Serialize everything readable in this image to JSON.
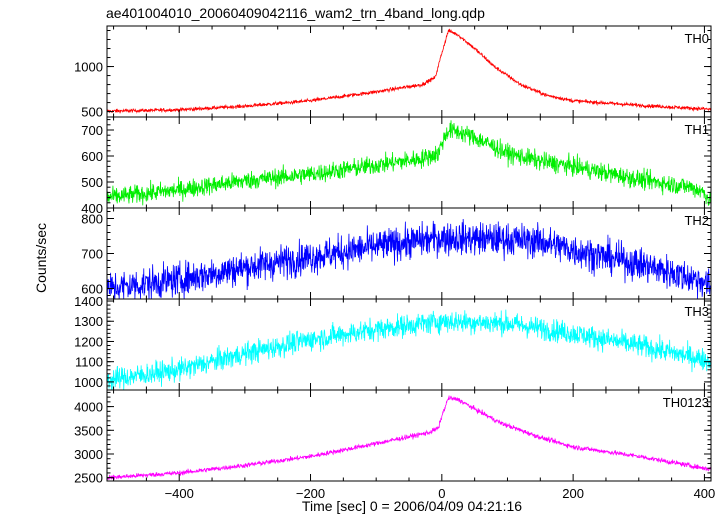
{
  "chart_data": {
    "type": "line",
    "title": "ae401004010_20060409042116_wam2_trn_4band_long.qdp",
    "xlabel": "Time [sec] 0 = 2006/04/09 04:21:16",
    "ylabel": "Counts/sec",
    "xlim": [
      -510,
      410
    ],
    "xticks": [
      -400,
      -200,
      0,
      200,
      400
    ],
    "xtick_labels": [
      "−400",
      "−200",
      "0",
      "200",
      "400"
    ],
    "grid": false,
    "panels": [
      {
        "name": "TH0",
        "color": "#ff0000",
        "ylim": [
          440,
          1450
        ],
        "yticks": [
          500,
          1000
        ],
        "noise": 10,
        "keypoints": [
          [
            -510,
            505
          ],
          [
            -400,
            520
          ],
          [
            -300,
            560
          ],
          [
            -200,
            620
          ],
          [
            -100,
            720
          ],
          [
            -30,
            800
          ],
          [
            -10,
            880
          ],
          [
            0,
            1150
          ],
          [
            10,
            1400
          ],
          [
            25,
            1350
          ],
          [
            50,
            1200
          ],
          [
            80,
            1000
          ],
          [
            120,
            800
          ],
          [
            160,
            680
          ],
          [
            200,
            620
          ],
          [
            300,
            570
          ],
          [
            400,
            530
          ],
          [
            410,
            525
          ]
        ]
      },
      {
        "name": "TH1",
        "color": "#00ee00",
        "ylim": [
          400,
          750
        ],
        "yticks": [
          400,
          500,
          600,
          700
        ],
        "noise": 18,
        "keypoints": [
          [
            -510,
            440
          ],
          [
            -400,
            470
          ],
          [
            -300,
            505
          ],
          [
            -200,
            530
          ],
          [
            -100,
            565
          ],
          [
            -30,
            590
          ],
          [
            -5,
            610
          ],
          [
            0,
            650
          ],
          [
            10,
            700
          ],
          [
            30,
            690
          ],
          [
            60,
            660
          ],
          [
            100,
            610
          ],
          [
            150,
            580
          ],
          [
            200,
            560
          ],
          [
            300,
            510
          ],
          [
            380,
            480
          ],
          [
            400,
            460
          ],
          [
            410,
            420
          ]
        ]
      },
      {
        "name": "TH2",
        "color": "#0000ff",
        "ylim": [
          570,
          830
        ],
        "yticks": [
          600,
          700,
          800
        ],
        "noise": 24,
        "keypoints": [
          [
            -510,
            600
          ],
          [
            -400,
            625
          ],
          [
            -300,
            660
          ],
          [
            -200,
            690
          ],
          [
            -100,
            720
          ],
          [
            0,
            745
          ],
          [
            100,
            740
          ],
          [
            150,
            735
          ],
          [
            200,
            710
          ],
          [
            300,
            670
          ],
          [
            400,
            620
          ],
          [
            410,
            600
          ]
        ]
      },
      {
        "name": "TH3",
        "color": "#00ffff",
        "ylim": [
          960,
          1410
        ],
        "yticks": [
          1000,
          1100,
          1200,
          1300,
          1400
        ],
        "noise": 28,
        "keypoints": [
          [
            -510,
            1010
          ],
          [
            -400,
            1060
          ],
          [
            -300,
            1140
          ],
          [
            -200,
            1210
          ],
          [
            -100,
            1260
          ],
          [
            0,
            1300
          ],
          [
            100,
            1290
          ],
          [
            200,
            1240
          ],
          [
            300,
            1180
          ],
          [
            400,
            1110
          ],
          [
            410,
            1100
          ]
        ]
      },
      {
        "name": "TH0123",
        "color": "#ff00ff",
        "ylim": [
          2430,
          4350
        ],
        "yticks": [
          2500,
          3000,
          3500,
          4000
        ],
        "noise": 25,
        "keypoints": [
          [
            -510,
            2500
          ],
          [
            -400,
            2600
          ],
          [
            -300,
            2760
          ],
          [
            -200,
            2950
          ],
          [
            -100,
            3220
          ],
          [
            -20,
            3450
          ],
          [
            -5,
            3550
          ],
          [
            0,
            3800
          ],
          [
            10,
            4180
          ],
          [
            25,
            4150
          ],
          [
            50,
            3950
          ],
          [
            90,
            3650
          ],
          [
            150,
            3350
          ],
          [
            200,
            3150
          ],
          [
            300,
            2950
          ],
          [
            400,
            2700
          ],
          [
            410,
            2680
          ]
        ]
      }
    ]
  }
}
